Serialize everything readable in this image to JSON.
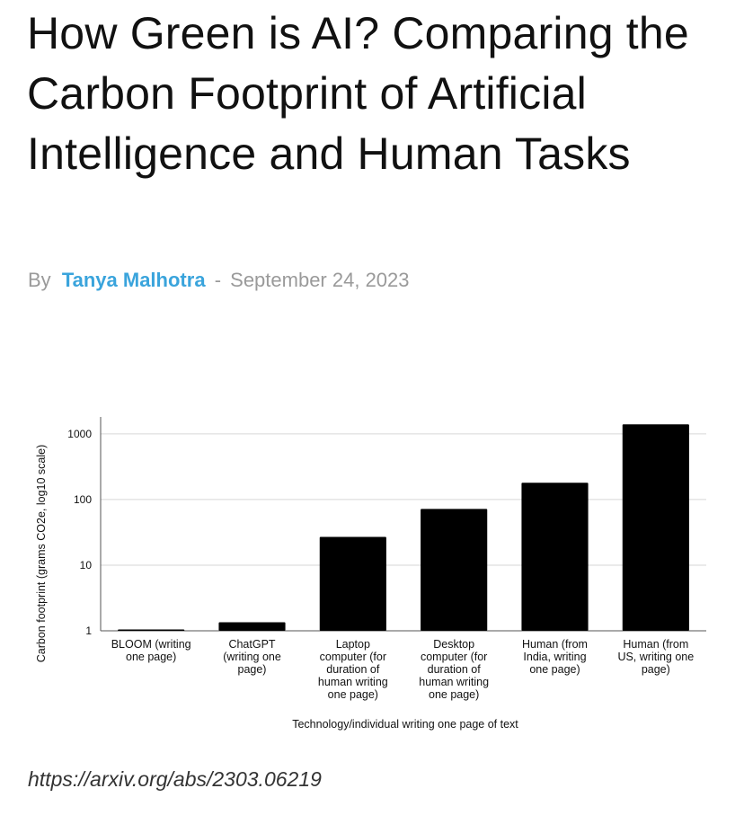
{
  "article": {
    "title": "How Green is AI? Comparing the Carbon Footprint of Artificial Intelligence and Human Tasks",
    "byline_prefix": "By",
    "author": "Tanya Malhotra",
    "separator": "-",
    "date": "September 24, 2023",
    "source_url": "https://arxiv.org/abs/2303.06219"
  },
  "chart_data": {
    "type": "bar",
    "title": "",
    "xlabel": "Technology/individual writing one page of text",
    "ylabel": "Carbon footprint (grams CO2e, log10 scale)",
    "y_scale": "log10",
    "ylim": [
      1,
      1500
    ],
    "yticks": [
      1,
      10,
      100,
      1000
    ],
    "grid": true,
    "bar_color": "#000000",
    "categories": [
      [
        "BLOOM (writing",
        "one page)"
      ],
      [
        "ChatGPT",
        "(writing one",
        "page)"
      ],
      [
        "Laptop",
        "computer (for",
        "duration of",
        "human writing",
        "one page)"
      ],
      [
        "Desktop",
        "computer (for",
        "duration of",
        "human writing",
        "one page)"
      ],
      [
        "Human (from",
        "India, writing",
        "one page)"
      ],
      [
        "Human (from",
        "US, writing one",
        "page)"
      ]
    ],
    "values": [
      1.05,
      1.35,
      27,
      72,
      180,
      1400
    ]
  }
}
